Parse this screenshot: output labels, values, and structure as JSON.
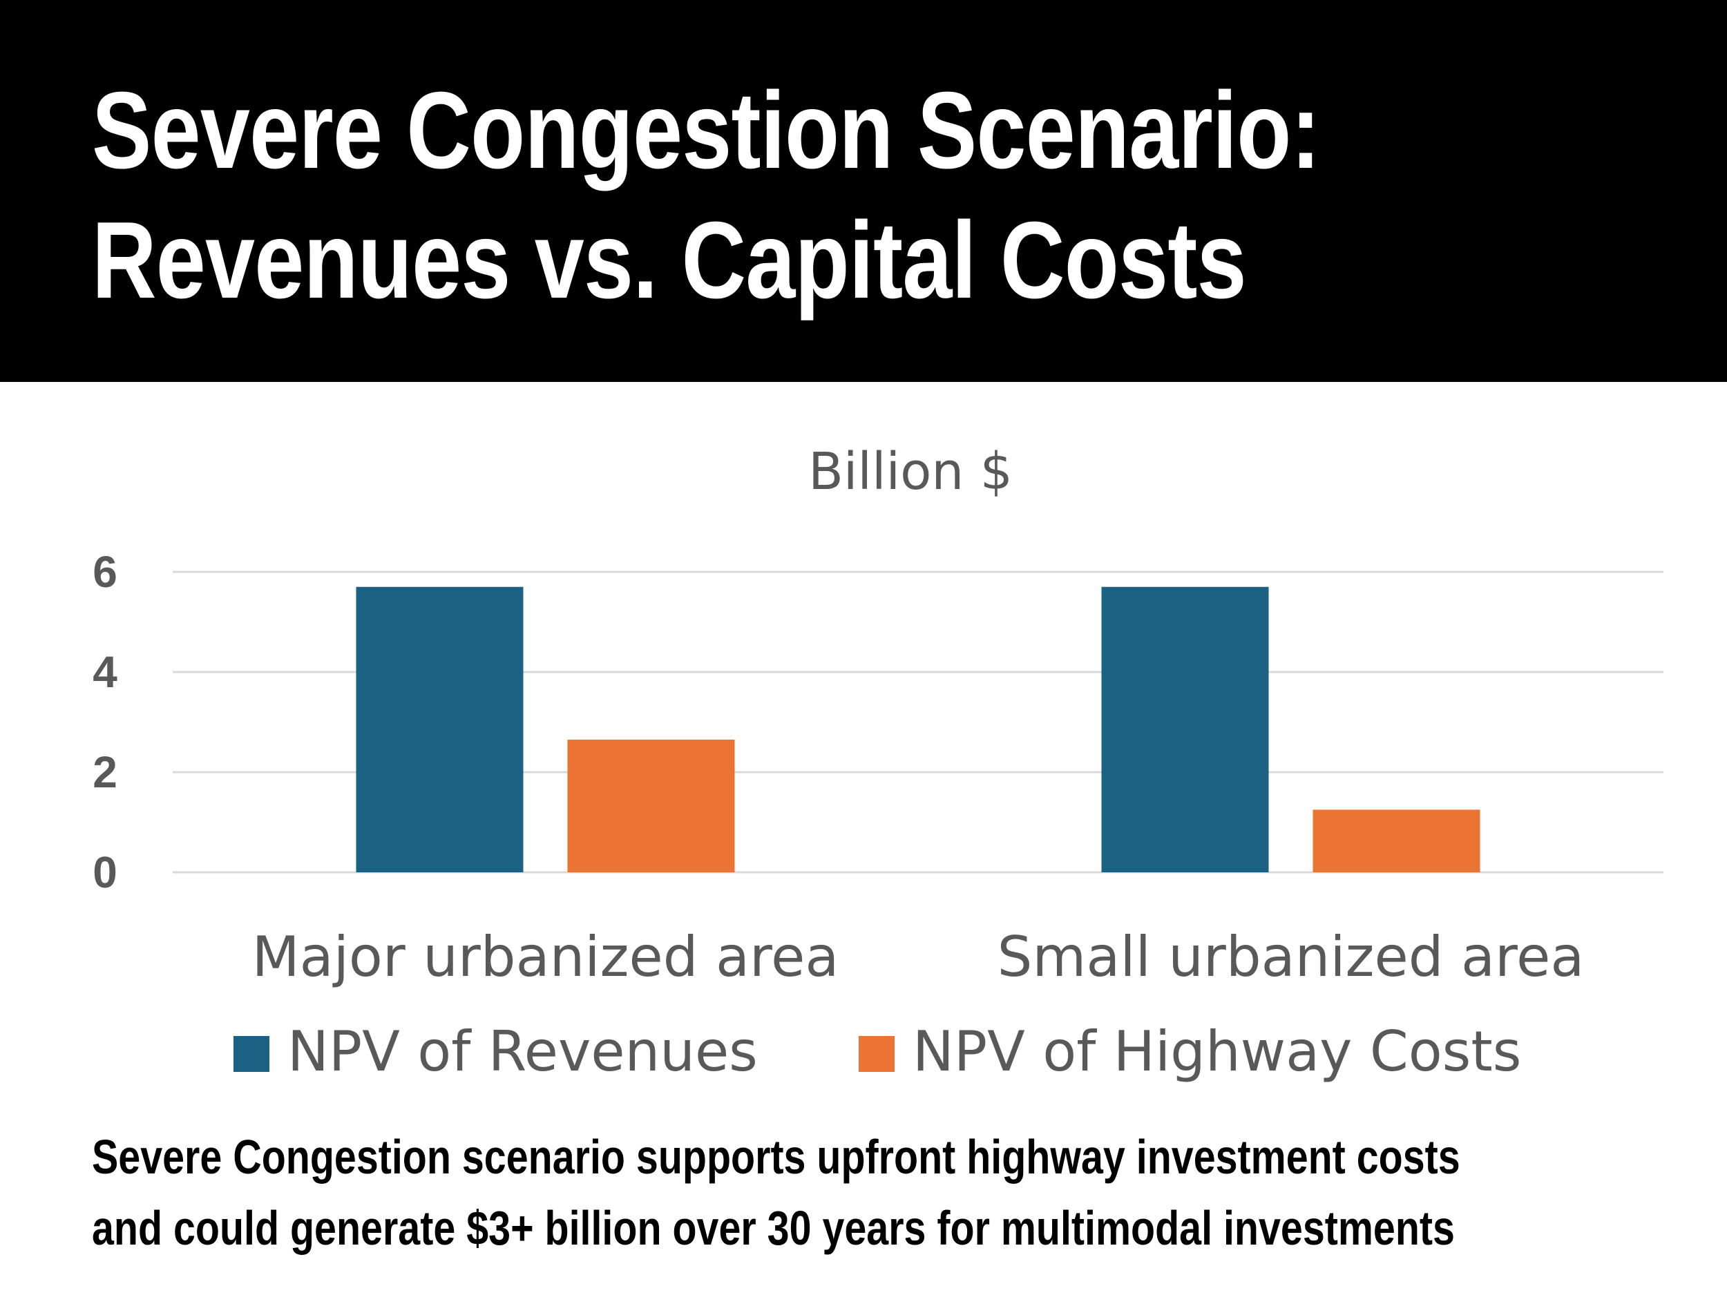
{
  "header": {
    "title_line1": "Severe Congestion Scenario:",
    "title_line2": "Revenues vs. Capital Costs"
  },
  "chart_data": {
    "type": "bar",
    "title": "Billion $",
    "xlabel": "",
    "ylabel": "",
    "ylim": [
      0,
      6
    ],
    "yticks": [
      "0",
      "2",
      "4",
      "6"
    ],
    "grid": true,
    "legend": "bottom",
    "categories": [
      "Major urbanized area",
      "Small urbanized area"
    ],
    "series": [
      {
        "name": "NPV of Revenues",
        "color": "#1b6184",
        "values": [
          5.7,
          5.7
        ]
      },
      {
        "name": "NPV of Highway Costs",
        "color": "#eb7334",
        "values": [
          2.65,
          1.25
        ]
      }
    ]
  },
  "caption": {
    "line1": "Severe Congestion scenario supports upfront highway investment costs",
    "line2": "and could generate $3+ billion over 30 years for multimodal investments"
  }
}
